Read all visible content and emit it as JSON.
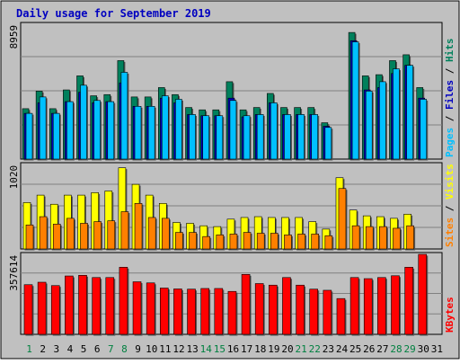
{
  "chart_data": [
    {
      "type": "bar",
      "title": "Daily usage for September 2019",
      "categories": [
        "1",
        "2",
        "3",
        "4",
        "5",
        "6",
        "7",
        "8",
        "9",
        "10",
        "11",
        "12",
        "13",
        "14",
        "15",
        "16",
        "17",
        "18",
        "19",
        "20",
        "21",
        "22",
        "23",
        "24",
        "25",
        "26",
        "27",
        "28",
        "29",
        "30",
        "31"
      ],
      "category_colors": {
        "weekday": "#00805c",
        "weekend": "#008040",
        "last": "#000000"
      },
      "panels": [
        {
          "id": "hits-files-visits",
          "ymax_label": "8959",
          "ymax": 8959,
          "side_label": [
            {
              "text": "Pages",
              "color": "#00c0ff"
            },
            {
              "text": " / ",
              "color": "#000000"
            },
            {
              "text": "Files",
              "color": "#0000c0"
            },
            {
              "text": " / ",
              "color": "#000000"
            },
            {
              "text": "Hits",
              "color": "#00805c"
            }
          ],
          "series": [
            {
              "name": "Hits",
              "color": "#00805c",
              "values": [
                4300,
                5800,
                4300,
                5900,
                7100,
                5400,
                5500,
                8400,
                5300,
                5300,
                6100,
                5500,
                4400,
                4200,
                4200,
                6600,
                4200,
                4400,
                5600,
                4400,
                4400,
                4400,
                3100,
                0,
                0,
                7100,
                7200,
                8400,
                8900,
                6100,
                0
              ]
            },
            {
              "name": "Files",
              "color": "#0000c0",
              "values": [
                3900,
                4800,
                3900,
                4900,
                5700,
                4800,
                4900,
                6500,
                4500,
                4500,
                5200,
                4800,
                3800,
                3700,
                3700,
                5200,
                3600,
                3800,
                4800,
                3800,
                3800,
                3800,
                2800,
                0,
                0,
                5900,
                6100,
                7300,
                8000,
                5200,
                0
              ]
            },
            {
              "name": "Pages",
              "color": "#00c0ff",
              "values": [
                3900,
                5300,
                3900,
                4900,
                6300,
                5000,
                4900,
                7400,
                4500,
                4500,
                5400,
                5100,
                3800,
                3700,
                3700,
                5000,
                3700,
                3800,
                4800,
                3800,
                3800,
                3800,
                2700,
                0,
                0,
                5800,
                6600,
                7700,
                8000,
                5100,
                0
              ]
            }
          ],
          "extra": [
            {
              "index": 24,
              "hits": 10800,
              "files": 10100,
              "pages": 10000
            },
            {
              "index": 26,
              "hits": 0,
              "files": 0,
              "pages": 0
            }
          ]
        },
        {
          "id": "visits-sites",
          "ymax_label": "1020",
          "ymax": 1020,
          "side_label": [
            {
              "text": "Sites",
              "color": "#ff8000"
            },
            {
              "text": " / ",
              "color": "#000000"
            },
            {
              "text": "Visits",
              "color": "#ffff00"
            }
          ],
          "series": [
            {
              "name": "Visits",
              "color": "#ffff00",
              "values": [
                560,
                650,
                540,
                650,
                650,
                680,
                700,
                980,
                780,
                650,
                550,
                320,
                310,
                280,
                270,
                360,
                380,
                390,
                380,
                380,
                380,
                330,
                240,
                860,
                470,
                400,
                390,
                370,
                420,
                0,
                0
              ]
            },
            {
              "name": "Sites",
              "color": "#ff8000",
              "values": [
                290,
                390,
                300,
                370,
                310,
                330,
                340,
                450,
                550,
                380,
                370,
                200,
                200,
                150,
                170,
                180,
                200,
                190,
                190,
                170,
                180,
                180,
                160,
                730,
                280,
                270,
                270,
                250,
                280,
                0,
                0
              ]
            }
          ]
        },
        {
          "id": "kbytes",
          "ymax_label": "357614",
          "ymax": 357614,
          "side_label": [
            {
              "text": "KBytes",
              "color": "#ff0000"
            }
          ],
          "series": [
            {
              "name": "KBytes",
              "color": "#ff0000",
              "values": [
                222000,
                233000,
                218000,
                261000,
                264000,
                254000,
                254000,
                300000,
                235000,
                230000,
                207000,
                203000,
                202000,
                205000,
                205000,
                192000,
                268000,
                227000,
                220000,
                254000,
                220000,
                202000,
                197000,
                160000,
                254000,
                249000,
                254000,
                262000,
                300000,
                357614,
                0
              ]
            }
          ]
        }
      ]
    }
  ]
}
